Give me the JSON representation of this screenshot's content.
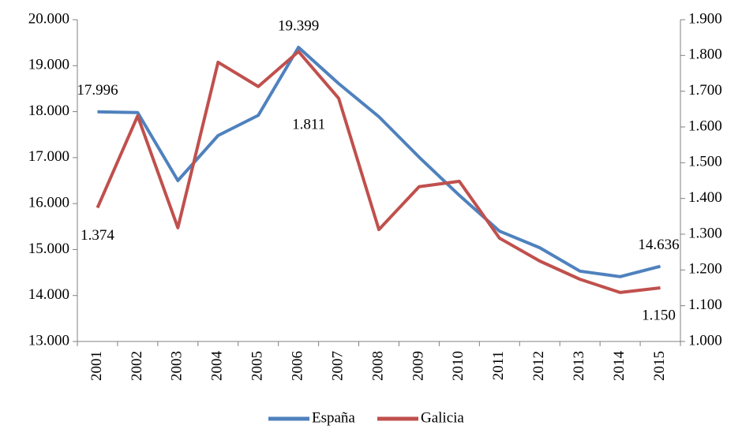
{
  "chart_data": {
    "type": "line",
    "categories": [
      "2001",
      "2002",
      "2003",
      "2004",
      "2005",
      "2006",
      "2007",
      "2008",
      "2009",
      "2010",
      "2011",
      "2012",
      "2013",
      "2014",
      "2015"
    ],
    "series": [
      {
        "name": "España",
        "color": "#4f81bd",
        "values": [
          17996,
          17980,
          16500,
          17480,
          17920,
          19399,
          18610,
          17890,
          17010,
          16180,
          15400,
          15040,
          14530,
          14410,
          14636
        ],
        "value_labels": [
          "17.996",
          null,
          null,
          null,
          null,
          "19.399",
          null,
          null,
          null,
          null,
          null,
          null,
          null,
          null,
          "14.636"
        ]
      },
      {
        "name": "Galicia",
        "color": "#c0504d",
        "axis": "y2",
        "values": [
          1374,
          1631,
          1318,
          1781,
          1713,
          1811,
          1680,
          1313,
          1433,
          1448,
          1289,
          1225,
          1174,
          1137,
          1150
        ],
        "value_labels": [
          "1.374",
          null,
          null,
          null,
          null,
          "1.811",
          null,
          null,
          null,
          null,
          null,
          null,
          null,
          null,
          "1.150"
        ]
      }
    ],
    "ylim": [
      13000,
      20000
    ],
    "yticks": [
      {
        "value": 13000,
        "label": "13.000"
      },
      {
        "value": 14000,
        "label": "14.000"
      },
      {
        "value": 15000,
        "label": "15.000"
      },
      {
        "value": 16000,
        "label": "16.000"
      },
      {
        "value": 17000,
        "label": "17.000"
      },
      {
        "value": 18000,
        "label": "18.000"
      },
      {
        "value": 19000,
        "label": "19.000"
      },
      {
        "value": 20000,
        "label": "20.000"
      }
    ],
    "y2lim": [
      1000,
      1900
    ],
    "y2ticks": [
      {
        "value": 1000,
        "label": "1.000"
      },
      {
        "value": 1100,
        "label": "1.100"
      },
      {
        "value": 1200,
        "label": "1.200"
      },
      {
        "value": 1300,
        "label": "1.300"
      },
      {
        "value": 1400,
        "label": "1.400"
      },
      {
        "value": 1500,
        "label": "1.500"
      },
      {
        "value": 1600,
        "label": "1.600"
      },
      {
        "value": 1700,
        "label": "1.700"
      },
      {
        "value": 1800,
        "label": "1.800"
      },
      {
        "value": 1900,
        "label": "1.900"
      }
    ],
    "grid": false,
    "legend": "bottom"
  }
}
